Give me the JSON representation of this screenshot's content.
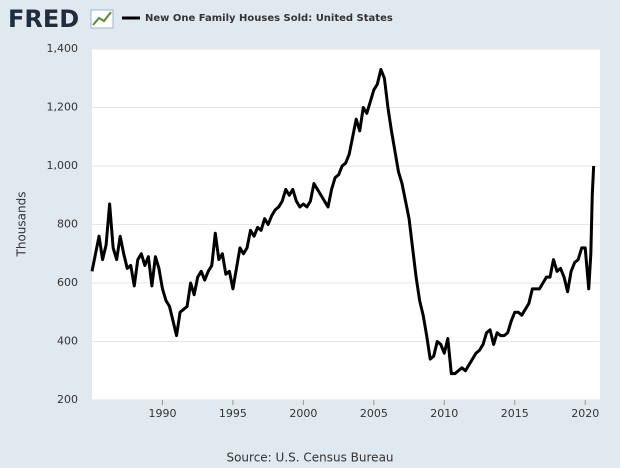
{
  "chart_data": {
    "type": "line",
    "logo": "FRED",
    "y_label": "Thousands",
    "source": "Source: U.S. Census Bureau",
    "x": [
      1985.0,
      1985.25,
      1985.5,
      1985.75,
      1986.0,
      1986.25,
      1986.5,
      1986.75,
      1987.0,
      1987.25,
      1987.5,
      1987.75,
      1988.0,
      1988.25,
      1988.5,
      1988.75,
      1989.0,
      1989.25,
      1989.5,
      1989.75,
      1990.0,
      1990.25,
      1990.5,
      1990.75,
      1991.0,
      1991.25,
      1991.5,
      1991.75,
      1992.0,
      1992.25,
      1992.5,
      1992.75,
      1993.0,
      1993.25,
      1993.5,
      1993.75,
      1994.0,
      1994.25,
      1994.5,
      1994.75,
      1995.0,
      1995.25,
      1995.5,
      1995.75,
      1996.0,
      1996.25,
      1996.5,
      1996.75,
      1997.0,
      1997.25,
      1997.5,
      1997.75,
      1998.0,
      1998.25,
      1998.5,
      1998.75,
      1999.0,
      1999.25,
      1999.5,
      1999.75,
      2000.0,
      2000.25,
      2000.5,
      2000.75,
      2001.0,
      2001.25,
      2001.5,
      2001.75,
      2002.0,
      2002.25,
      2002.5,
      2002.75,
      2003.0,
      2003.25,
      2003.5,
      2003.75,
      2004.0,
      2004.25,
      2004.5,
      2004.75,
      2005.0,
      2005.25,
      2005.5,
      2005.75,
      2006.0,
      2006.25,
      2006.5,
      2006.75,
      2007.0,
      2007.25,
      2007.5,
      2007.75,
      2008.0,
      2008.25,
      2008.5,
      2008.75,
      2009.0,
      2009.25,
      2009.5,
      2009.75,
      2010.0,
      2010.25,
      2010.5,
      2010.75,
      2011.0,
      2011.25,
      2011.5,
      2011.75,
      2012.0,
      2012.25,
      2012.5,
      2012.75,
      2013.0,
      2013.25,
      2013.5,
      2013.75,
      2014.0,
      2014.25,
      2014.5,
      2014.75,
      2015.0,
      2015.25,
      2015.5,
      2015.75,
      2016.0,
      2016.25,
      2016.5,
      2016.75,
      2017.0,
      2017.25,
      2017.5,
      2017.75,
      2018.0,
      2018.25,
      2018.5,
      2018.75,
      2019.0,
      2019.25,
      2019.5,
      2019.75,
      2020.0,
      2020.25,
      2020.4,
      2020.5,
      2020.6
    ],
    "series": [
      {
        "name": "New One Family Houses Sold: United States",
        "color": "#000000",
        "values": [
          640,
          700,
          760,
          680,
          730,
          870,
          720,
          680,
          760,
          700,
          650,
          660,
          590,
          680,
          700,
          660,
          690,
          590,
          690,
          650,
          580,
          540,
          520,
          470,
          420,
          500,
          510,
          520,
          600,
          560,
          620,
          640,
          610,
          640,
          660,
          770,
          680,
          700,
          630,
          640,
          580,
          650,
          720,
          700,
          720,
          780,
          760,
          790,
          780,
          820,
          800,
          830,
          850,
          860,
          880,
          920,
          900,
          920,
          880,
          860,
          870,
          860,
          880,
          940,
          920,
          900,
          880,
          860,
          920,
          960,
          970,
          1000,
          1010,
          1040,
          1100,
          1160,
          1120,
          1200,
          1180,
          1220,
          1260,
          1280,
          1330,
          1300,
          1200,
          1120,
          1050,
          980,
          940,
          880,
          820,
          720,
          620,
          540,
          490,
          420,
          340,
          350,
          400,
          390,
          360,
          410,
          290,
          290,
          300,
          310,
          300,
          320,
          340,
          360,
          370,
          390,
          430,
          440,
          390,
          430,
          420,
          420,
          430,
          470,
          500,
          500,
          490,
          510,
          530,
          580,
          580,
          580,
          600,
          620,
          620,
          680,
          640,
          650,
          620,
          570,
          640,
          670,
          680,
          720,
          720,
          580,
          700,
          900,
          1000
        ]
      }
    ],
    "xlim": [
      1985,
      2021.05
    ],
    "xticks": [
      1990,
      1995,
      2000,
      2005,
      2010,
      2015,
      2020
    ],
    "ylim": [
      200,
      1400
    ],
    "yticks": [
      200,
      400,
      600,
      800,
      {
        "value": 1000,
        "label": "1,000"
      },
      {
        "value": 1200,
        "label": "1,200"
      },
      {
        "value": 1400,
        "label": "1,400"
      }
    ],
    "grid": true
  }
}
